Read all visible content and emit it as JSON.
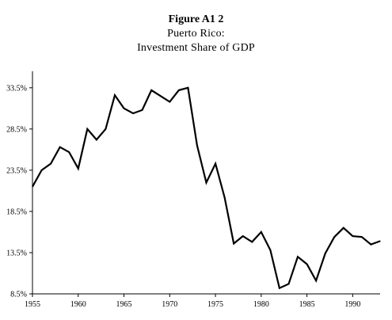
{
  "chart_data": {
    "type": "line",
    "title": "Figure A1 2",
    "subtitle_lines": [
      "Puerto Rico:",
      "Investment Share of GDP"
    ],
    "xlabel": "",
    "ylabel": "",
    "xlim": [
      1955,
      1993
    ],
    "ylim": [
      8.5,
      35.5
    ],
    "x_ticks": [
      1955,
      1960,
      1965,
      1970,
      1975,
      1980,
      1985,
      1990
    ],
    "x_tick_labels": [
      "1955",
      "1960",
      "1965",
      "1970",
      "1975",
      "1980",
      "1985",
      "1990"
    ],
    "y_ticks": [
      8.5,
      13.5,
      18.5,
      23.5,
      28.5,
      33.5
    ],
    "y_tick_labels": [
      "8.5%",
      "13.5%",
      "18.5%",
      "23.5%",
      "28.5%",
      "33.5%"
    ],
    "grid": false,
    "legend": "none",
    "line_color": "#000000",
    "series": [
      {
        "x": [
          1955,
          1956,
          1957,
          1958,
          1959,
          1960,
          1961,
          1962,
          1963,
          1964,
          1965,
          1966,
          1967,
          1968,
          1969,
          1970,
          1971,
          1972,
          1973,
          1974,
          1975,
          1976,
          1977,
          1978,
          1979,
          1980,
          1981,
          1982,
          1983,
          1984,
          1985,
          1986,
          1987,
          1988,
          1989,
          1990,
          1991,
          1992,
          1993
        ],
        "values": [
          21.5,
          23.5,
          24.3,
          26.3,
          25.7,
          23.7,
          28.5,
          27.2,
          28.5,
          32.6,
          31.0,
          30.4,
          30.8,
          33.2,
          32.5,
          31.8,
          33.2,
          33.5,
          26.5,
          22.0,
          24.3,
          20.2,
          14.6,
          15.5,
          14.8,
          16.0,
          13.8,
          9.2,
          9.7,
          13.0,
          12.1,
          10.1,
          13.4,
          15.4,
          16.5,
          15.5,
          15.4,
          14.5,
          14.9
        ]
      }
    ]
  }
}
